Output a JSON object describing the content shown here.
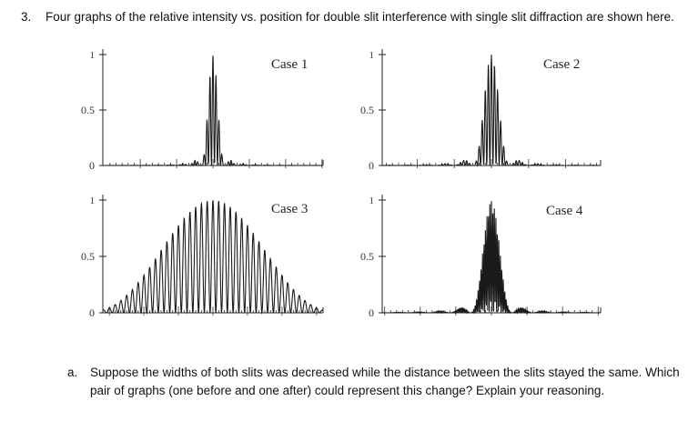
{
  "question": {
    "number": "3.",
    "text": "Four graphs of the relative intensity vs. position for double slit interference with single slit diffraction are shown here."
  },
  "subquestion": {
    "letter": "a.",
    "text": "Suppose the widths of both slits was decreased while the distance between the slits stayed the same. Which pair of graphs (one before and one after) could represent this change? Explain your reasoning."
  },
  "chart_data": [
    {
      "type": "line",
      "title": "Case 1",
      "yticks": [
        "1",
        "0.5",
        "0"
      ],
      "ylim": [
        0,
        1
      ],
      "fringes_per_envelope_lobe": 4,
      "central_lobe_half_width_ratio": 0.11
    },
    {
      "type": "line",
      "title": "Case 2",
      "yticks": [
        "1",
        "0.5",
        "0"
      ],
      "ylim": [
        0,
        1
      ],
      "fringes_per_envelope_lobe": 6,
      "central_lobe_half_width_ratio": 0.17
    },
    {
      "type": "line",
      "title": "Case 3",
      "yticks": [
        "1",
        "0.5",
        "0"
      ],
      "ylim": [
        0,
        1
      ],
      "fringes_per_envelope_lobe": 22,
      "central_lobe_half_width_ratio": 1.15
    },
    {
      "type": "line",
      "title": "Case 4",
      "yticks": [
        "1",
        "0.5",
        "0"
      ],
      "ylim": [
        0,
        1
      ],
      "fringes_per_envelope_lobe": 14,
      "central_lobe_half_width_ratio": 0.19
    }
  ]
}
